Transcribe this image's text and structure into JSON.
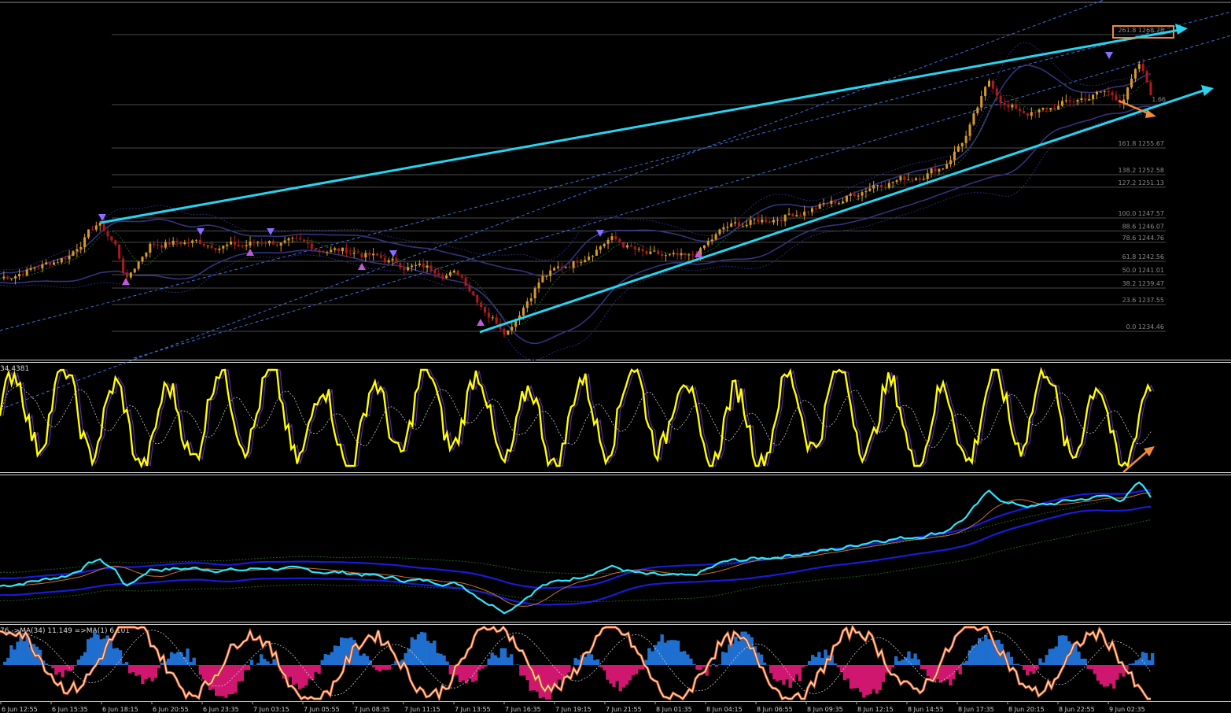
{
  "chart_data": {
    "type": "line",
    "panes": [
      {
        "name": "",
        "series_colors": {
          "candles_up": "#d89a2a",
          "candles_down": "#b01a1a",
          "bollinger": "#2f2f8f",
          "channel": "#3a5fcd",
          "trend": "#27d4f0"
        },
        "fibo_levels": [
          {
            "label": "261.8 1268.78",
            "level": 261.8,
            "price": 1268.78
          },
          {
            "label": "161.8 1255.67",
            "level": 161.8,
            "price": 1255.67
          },
          {
            "label": "138.2 1252.58",
            "level": 138.2,
            "price": 1252.58
          },
          {
            "label": "127.2 1251.13",
            "level": 127.2,
            "price": 1251.13
          },
          {
            "label": "100.0 1247.57",
            "level": 100.0,
            "price": 1247.57
          },
          {
            "label": "88.6 1246.07",
            "level": 88.6,
            "price": 1246.07
          },
          {
            "label": "78.6 1244.76",
            "level": 78.6,
            "price": 1244.76
          },
          {
            "label": "61.8 1242.56",
            "level": 61.8,
            "price": 1242.56
          },
          {
            "label": "50.0 1241.01",
            "level": 50.0,
            "price": 1241.01
          },
          {
            "label": "38.2 1239.47",
            "level": 38.2,
            "price": 1239.47
          },
          {
            "label": "23.6 1237.55",
            "level": 23.6,
            "price": 1237.55
          },
          {
            "label": "0.0 1234.46",
            "level": 0.0,
            "price": 1234.46
          }
        ],
        "partial_label": "1.66"
      },
      {
        "name": "",
        "header": "34.4381",
        "line_color": "#ffff00"
      },
      {
        "name": "",
        "line_color": "#2ee6ff"
      },
      {
        "name": "",
        "header": "76  ->MA(34) 11.149  =>MA(1) 6.101",
        "hist_up": "#1f6fd0",
        "hist_down": "#d0176f",
        "line_color": "#ffd8b0"
      }
    ],
    "x_tick_labels": [
      "6 Jun 12:55",
      "6 Jun 15:35",
      "6 Jun 18:15",
      "6 Jun 20:55",
      "6 Jun 23:35",
      "7 Jun 03:15",
      "7 Jun 05:55",
      "7 Jun 08:35",
      "7 Jun 11:15",
      "7 Jun 13:55",
      "7 Jun 16:35",
      "7 Jun 19:15",
      "7 Jun 21:55",
      "8 Jun 01:35",
      "8 Jun 04:15",
      "8 Jun 06:55",
      "8 Jun 09:35",
      "8 Jun 12:15",
      "8 Jun 14:55",
      "8 Jun 17:35",
      "8 Jun 20:15",
      "8 Jun 22:55",
      "9 Jun 02:35"
    ],
    "price_path": [
      [
        0,
        1240.6
      ],
      [
        0.04,
        1242.2
      ],
      [
        0.06,
        1243.3
      ],
      [
        0.085,
        1247.0
      ],
      [
        0.1,
        1244.5
      ],
      [
        0.11,
        1240.4
      ],
      [
        0.13,
        1244.6
      ],
      [
        0.17,
        1244.8
      ],
      [
        0.21,
        1244.3
      ],
      [
        0.23,
        1245.0
      ],
      [
        0.27,
        1244.2
      ],
      [
        0.31,
        1243.6
      ],
      [
        0.35,
        1242.1
      ],
      [
        0.38,
        1241.6
      ],
      [
        0.4,
        1241.0
      ],
      [
        0.425,
        1236.5
      ],
      [
        0.44,
        1234.6
      ],
      [
        0.47,
        1240.6
      ],
      [
        0.5,
        1242.6
      ],
      [
        0.53,
        1245.3
      ],
      [
        0.56,
        1243.2
      ],
      [
        0.6,
        1242.7
      ],
      [
        0.63,
        1246.4
      ],
      [
        0.67,
        1247.5
      ],
      [
        0.7,
        1248.5
      ],
      [
        0.73,
        1249.5
      ],
      [
        0.76,
        1251.6
      ],
      [
        0.79,
        1252.2
      ],
      [
        0.82,
        1253.6
      ],
      [
        0.84,
        1257.2
      ],
      [
        0.86,
        1263.3
      ],
      [
        0.875,
        1260.4
      ],
      [
        0.9,
        1259.6
      ],
      [
        0.93,
        1261.0
      ],
      [
        0.96,
        1262.1
      ],
      [
        0.975,
        1261.3
      ],
      [
        0.99,
        1265.1
      ],
      [
        1.0,
        1262.0
      ]
    ]
  }
}
